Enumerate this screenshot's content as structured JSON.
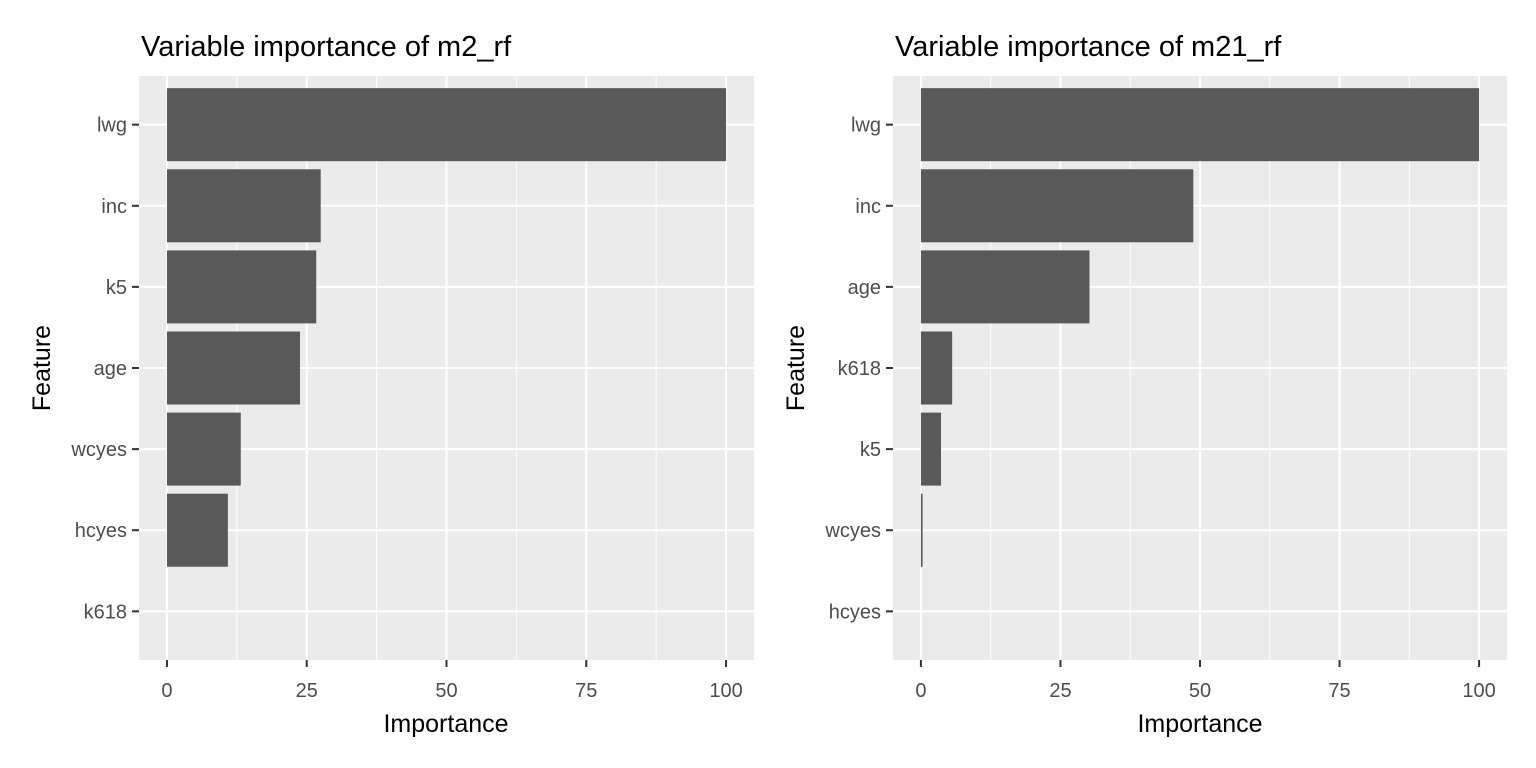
{
  "chart_data": [
    {
      "type": "bar",
      "orientation": "horizontal",
      "title": "Variable importance of m2_rf",
      "xlabel": "Importance",
      "ylabel": "Feature",
      "xlim": [
        0,
        100
      ],
      "xticks": [
        "0",
        "25",
        "50",
        "75",
        "100"
      ],
      "grid": true,
      "bar_color": "#595959",
      "panel_color": "#ebebeb",
      "categories": [
        "lwg",
        "inc",
        "k5",
        "age",
        "wcyes",
        "hcyes",
        "k618"
      ],
      "values": [
        100,
        27.5,
        26.7,
        23.8,
        13.2,
        10.9,
        0
      ]
    },
    {
      "type": "bar",
      "orientation": "horizontal",
      "title": "Variable importance of m21_rf",
      "xlabel": "Importance",
      "ylabel": "Feature",
      "xlim": [
        0,
        100
      ],
      "xticks": [
        "0",
        "25",
        "50",
        "75",
        "100"
      ],
      "grid": true,
      "bar_color": "#595959",
      "panel_color": "#ebebeb",
      "categories": [
        "lwg",
        "inc",
        "age",
        "k618",
        "k5",
        "wcyes",
        "hcyes"
      ],
      "values": [
        100,
        48.8,
        30.2,
        5.6,
        3.6,
        0.3,
        0
      ]
    }
  ]
}
